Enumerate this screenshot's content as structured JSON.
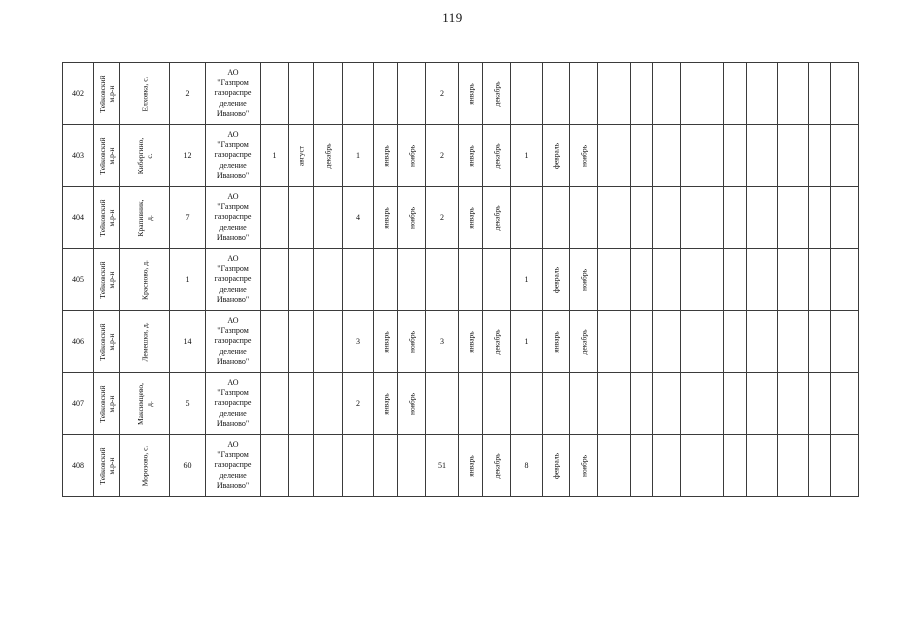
{
  "page": {
    "number": "119"
  },
  "table": {
    "rows": [
      {
        "num": "402",
        "district": "Тейковский\nм.р-н",
        "settlement": "Елховка, с.",
        "total": "2",
        "org": "АО\n\"Газпром\nгазораспре\nделение\nИваново\"",
        "cells": [
          "",
          "",
          "",
          "",
          "",
          "",
          "2",
          "январь",
          "декабрь",
          "",
          "",
          "",
          "",
          "",
          "",
          "",
          "",
          "",
          "",
          "",
          ""
        ]
      },
      {
        "num": "403",
        "district": "Тейковский\nм.р-н",
        "settlement": "Кибергино,\nс.",
        "total": "12",
        "org": "АО\n\"Газпром\nгазораспре\nделение\nИваново\"",
        "cells": [
          "1",
          "август",
          "декабрь",
          "1",
          "январь",
          "ноябрь",
          "2",
          "январь",
          "декабрь",
          "1",
          "февраль",
          "ноябрь",
          "",
          "",
          "",
          "",
          "",
          "",
          "",
          "",
          ""
        ]
      },
      {
        "num": "404",
        "district": "Тейковский\nм.р-н",
        "settlement": "Крапивник,\nд.",
        "total": "7",
        "org": "АО\n\"Газпром\nгазораспре\nделение\nИваново\"",
        "cells": [
          "",
          "",
          "",
          "4",
          "январь",
          "ноябрь",
          "2",
          "январь",
          "декабрь",
          "",
          "",
          "",
          "",
          "",
          "",
          "",
          "",
          "",
          "",
          "",
          ""
        ]
      },
      {
        "num": "405",
        "district": "Тейковский\nм.р-н",
        "settlement": "Красново, д.",
        "total": "1",
        "org": "АО\n\"Газпром\nгазораспре\nделение\nИваново\"",
        "cells": [
          "",
          "",
          "",
          "",
          "",
          "",
          "",
          "",
          "",
          "1",
          "февраль",
          "ноябрь",
          "",
          "",
          "",
          "",
          "",
          "",
          "",
          "",
          ""
        ]
      },
      {
        "num": "406",
        "district": "Тейковский\nм.р-н",
        "settlement": "Лемешки, д.",
        "total": "14",
        "org": "АО\n\"Газпром\nгазораспре\nделение\nИваново\"",
        "cells": [
          "",
          "",
          "",
          "3",
          "январь",
          "ноябрь",
          "3",
          "январь",
          "декабрь",
          "1",
          "январь",
          "декабрь",
          "",
          "",
          "",
          "",
          "",
          "",
          "",
          "",
          ""
        ]
      },
      {
        "num": "407",
        "district": "Тейковский\nм.р-н",
        "settlement": "Максимцево,\nд.",
        "total": "5",
        "org": "АО\n\"Газпром\nгазораспре\nделение\nИваново\"",
        "cells": [
          "",
          "",
          "",
          "2",
          "январь",
          "ноябрь",
          "",
          "",
          "",
          "",
          "",
          "",
          "",
          "",
          "",
          "",
          "",
          "",
          "",
          "",
          ""
        ]
      },
      {
        "num": "408",
        "district": "Тейковский\nм.р-н",
        "settlement": "Морозово, с.",
        "total": "60",
        "org": "АО\n\"Газпром\nгазораспре\nделение\nИваново\"",
        "cells": [
          "",
          "",
          "",
          "",
          "",
          "",
          "51",
          "январь",
          "декабрь",
          "8",
          "февраль",
          "ноябрь",
          "",
          "",
          "",
          "",
          "",
          "",
          "",
          "",
          ""
        ]
      }
    ]
  }
}
